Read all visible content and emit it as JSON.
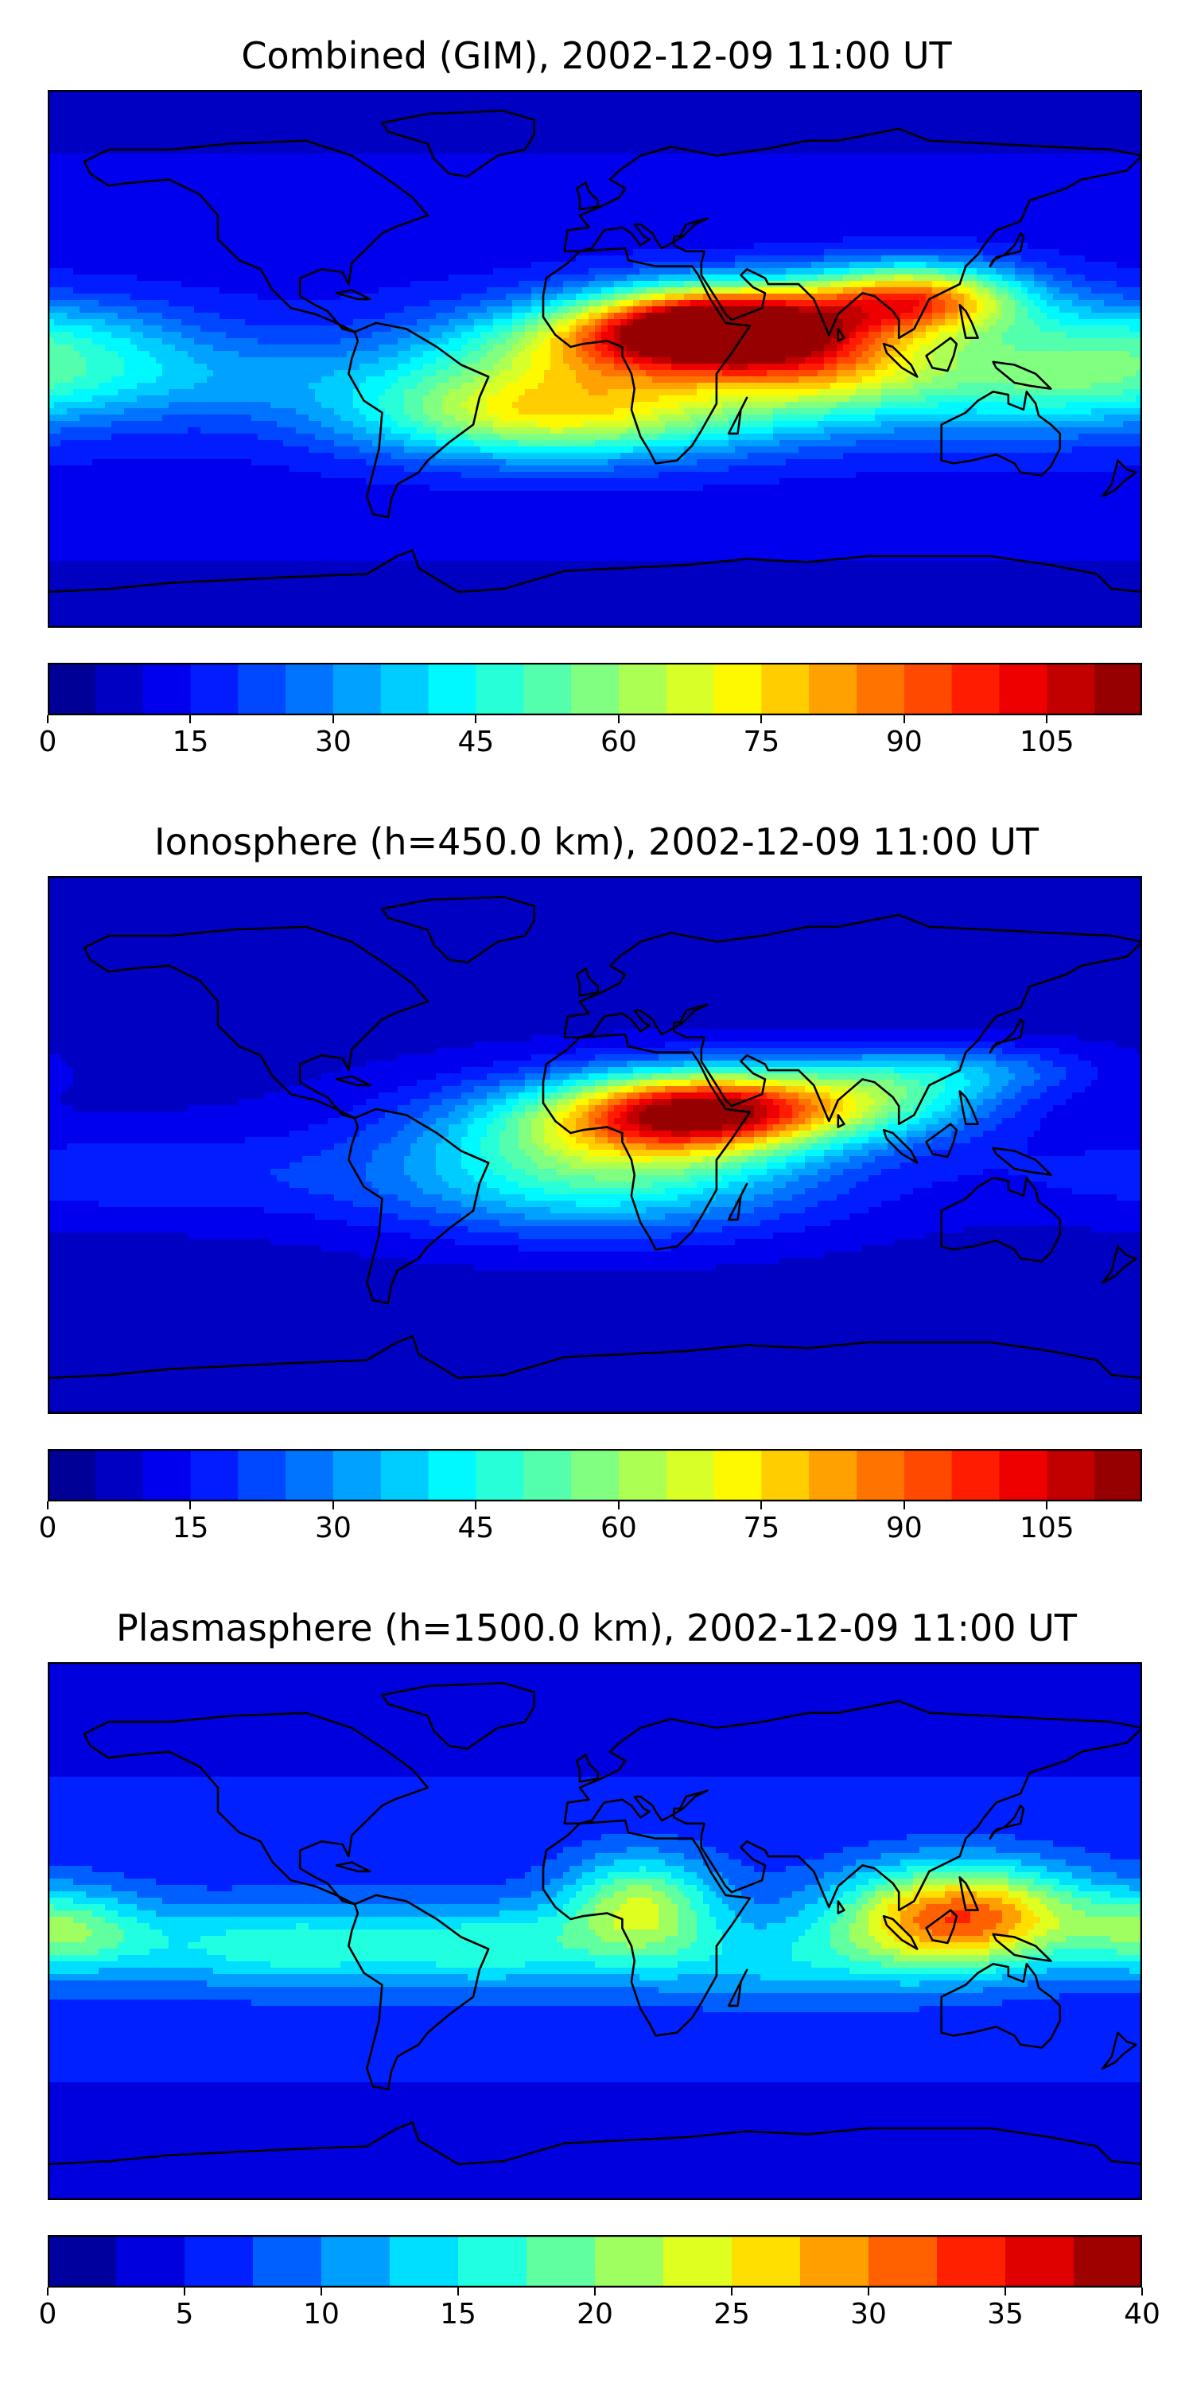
{
  "chart_data": [
    {
      "type": "heatmap",
      "title": "Combined (GIM), 2002-12-09 11:00 UT",
      "colorbar": {
        "min": 0,
        "max": 115,
        "step": 5,
        "ticks": [
          0,
          15,
          30,
          45,
          60,
          75,
          90,
          105
        ],
        "tick_labels": [
          "0",
          "15",
          "30",
          "45",
          "60",
          "75",
          "90",
          "105"
        ],
        "colormap": "jet"
      },
      "field": {
        "background": 14,
        "blobs": [
          {
            "lon": 40,
            "lat": 12,
            "slon": 28,
            "slat": 9,
            "amp": 88
          },
          {
            "lon": 10,
            "lat": 5,
            "slon": 40,
            "slat": 10,
            "amp": 48
          },
          {
            "lon": 105,
            "lat": 20,
            "slon": 25,
            "slat": 8,
            "amp": 70
          },
          {
            "lon": 75,
            "lat": 0,
            "slon": 28,
            "slat": 12,
            "amp": 45
          },
          {
            "lon": 0,
            "lat": -15,
            "slon": 55,
            "slat": 12,
            "amp": 38
          },
          {
            "lon": 150,
            "lat": -5,
            "slon": 40,
            "slat": 14,
            "amp": 32
          },
          {
            "lon": -20,
            "lat": -20,
            "slon": 40,
            "slat": 10,
            "amp": 25
          },
          {
            "lon": -150,
            "lat": -5,
            "slon": 60,
            "slat": 10,
            "amp": 16
          },
          {
            "lon": -175,
            "lat": 10,
            "slon": 30,
            "slat": 8,
            "amp": 12
          }
        ]
      }
    },
    {
      "type": "heatmap",
      "title": "Ionosphere  (h=450.0 km), 2002-12-09 11:00 UT",
      "colorbar": {
        "min": 0,
        "max": 115,
        "step": 5,
        "ticks": [
          0,
          15,
          30,
          45,
          60,
          75,
          90,
          105
        ],
        "tick_labels": [
          "0",
          "15",
          "30",
          "45",
          "60",
          "75",
          "90",
          "105"
        ],
        "colormap": "jet"
      },
      "field": {
        "background": 9,
        "blobs": [
          {
            "lon": 35,
            "lat": 12,
            "slon": 30,
            "slat": 9,
            "amp": 72
          },
          {
            "lon": 10,
            "lat": 5,
            "slon": 45,
            "slat": 12,
            "amp": 45
          },
          {
            "lon": 90,
            "lat": 15,
            "slon": 30,
            "slat": 9,
            "amp": 35
          },
          {
            "lon": 0,
            "lat": -15,
            "slon": 50,
            "slat": 12,
            "amp": 28
          },
          {
            "lon": 120,
            "lat": 25,
            "slon": 30,
            "slat": 6,
            "amp": 18
          },
          {
            "lon": -150,
            "lat": -10,
            "slon": 60,
            "slat": 10,
            "amp": 10
          }
        ]
      }
    },
    {
      "type": "heatmap",
      "title": "Plasmasphere (h=1500.0 km), 2002-12-09 11:00 UT",
      "colorbar": {
        "min": 0,
        "max": 40,
        "step": 2.5,
        "ticks": [
          0,
          5,
          10,
          15,
          20,
          25,
          30,
          35,
          40
        ],
        "tick_labels": [
          "0",
          "5",
          "10",
          "15",
          "20",
          "25",
          "30",
          "35",
          "40"
        ],
        "colormap": "jet"
      },
      "field": {
        "background": 6,
        "blobs": [
          {
            "lon": 120,
            "lat": 5,
            "slon": 28,
            "slat": 12,
            "amp": 26
          },
          {
            "lon": 15,
            "lat": 8,
            "slon": 18,
            "slat": 12,
            "amp": 16
          },
          {
            "lon": -100,
            "lat": -5,
            "slon": 40,
            "slat": 10,
            "amp": 11
          },
          {
            "lon": -175,
            "lat": 0,
            "slon": 20,
            "slat": 10,
            "amp": 12
          },
          {
            "lon": -30,
            "lat": -5,
            "slon": 25,
            "slat": 10,
            "amp": 8
          },
          {
            "lon": 60,
            "lat": -10,
            "slon": 40,
            "slat": 10,
            "amp": 7
          }
        ]
      }
    }
  ]
}
